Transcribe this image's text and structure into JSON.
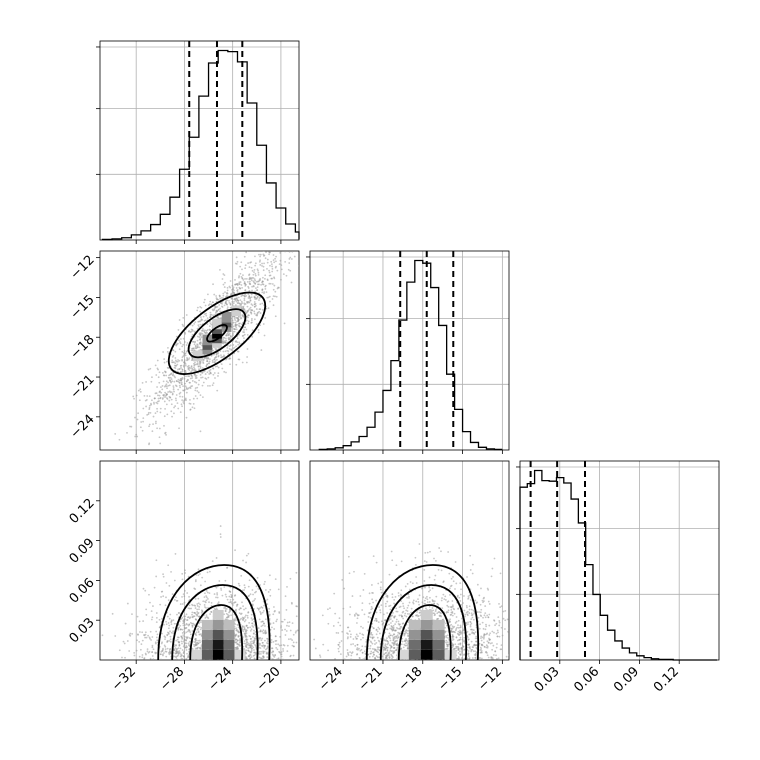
{
  "chart_data": {
    "type": "corner",
    "grid": true,
    "parameters": [
      {
        "range": [
          -35,
          -18.5
        ],
        "ticks": [
          -32,
          -28,
          -24,
          -20
        ],
        "tick_labels": [
          "−32",
          "−28",
          "−24",
          "−20"
        ]
      },
      {
        "range": [
          -26.5,
          -11.5
        ],
        "ticks": [
          -24,
          -21,
          -18,
          -15,
          -12
        ],
        "tick_labels": [
          "−24",
          "−21",
          "−18",
          "−15",
          "−12"
        ]
      },
      {
        "range": [
          0,
          0.15
        ],
        "ticks": [
          0.03,
          0.06,
          0.09,
          0.12
        ],
        "tick_labels": [
          "0.03",
          "0.06",
          "0.09",
          "0.12"
        ]
      }
    ],
    "quantiles": [
      [
        -27.6,
        -25.3,
        -23.2
      ],
      [
        -19.7,
        -17.7,
        -15.7
      ],
      [
        0.008,
        0.028,
        0.049
      ]
    ],
    "histograms": [
      {
        "bins_edges_start": -34.8,
        "bin_width": 0.8,
        "counts": [
          1,
          2,
          4,
          9,
          16,
          27,
          45,
          75,
          124,
          180,
          252,
          310,
          332,
          330,
          312,
          240,
          166,
          100,
          56,
          28,
          14,
          6,
          2,
          1
        ]
      },
      {
        "bins_edges_start": -25.8,
        "bin_width": 0.6,
        "counts": [
          1,
          2,
          4,
          8,
          15,
          25,
          42,
          70,
          110,
          165,
          240,
          310,
          350,
          345,
          300,
          230,
          140,
          75,
          34,
          14,
          5,
          2,
          1
        ]
      },
      {
        "bins_edges_start": 0.0,
        "bin_width": 0.0055,
        "counts": [
          290,
          296,
          318,
          301,
          300,
          306,
          297,
          270,
          230,
          160,
          110,
          75,
          50,
          32,
          20,
          12,
          7,
          4,
          2,
          1,
          1,
          0,
          0,
          0,
          0,
          0,
          0
        ]
      }
    ],
    "correlations": {
      "1_0": {
        "mean": [
          -25.3,
          -17.7
        ],
        "sd": [
          1.8,
          2.0
        ],
        "rho": 0.85
      },
      "2_0": {
        "mean": [
          -25.2,
          0.025
        ],
        "sd": [
          2.0,
          0.018
        ],
        "rho": 0.05
      },
      "2_1": {
        "mean": [
          -17.7,
          0.025
        ],
        "sd": [
          2.0,
          0.018
        ],
        "rho": 0.05
      }
    },
    "title": "",
    "legend": ""
  }
}
